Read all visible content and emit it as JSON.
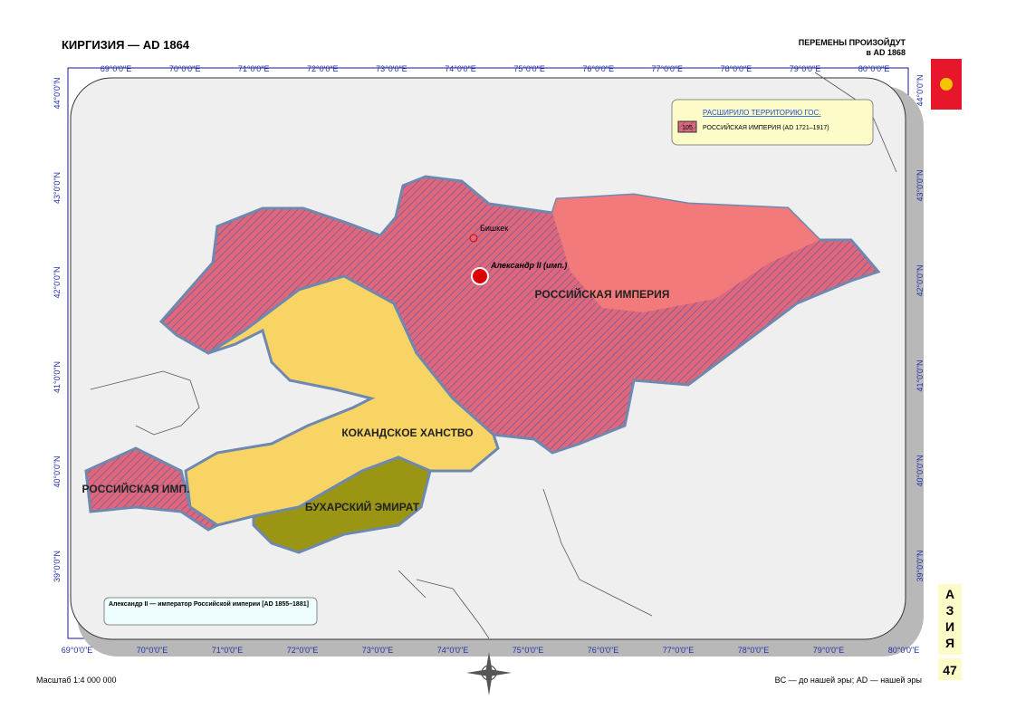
{
  "header": {
    "title": "КИРГИЗИЯ — AD 1864",
    "changes": "ПЕРЕМЕНЫ ПРОИЗОЙДУТ",
    "changes_date": "в AD 1868"
  },
  "grid": {
    "top_lon": [
      "69°0'0\"E",
      "70°0'0\"E",
      "71°0'0\"E",
      "72°0'0\"E",
      "73°0'0\"E",
      "74°0'0\"E",
      "75°0'0\"E",
      "76°0'0\"E",
      "77°0'0\"E",
      "78°0'0\"E",
      "79°0'0\"E",
      "80°0'0\"E"
    ],
    "bottom_lon": [
      "69°0'0\"E",
      "70°0'0\"E",
      "71°0'0\"E",
      "72°0'0\"E",
      "73°0'0\"E",
      "74°0'0\"E",
      "75°0'0\"E",
      "76°0'0\"E",
      "77°0'0\"E",
      "78°0'0\"E",
      "79°0'0\"E",
      "80°0'0\"E"
    ],
    "left_lat": [
      "44°0'0\"N",
      "43°0'0\"N",
      "42°0'0\"N",
      "41°0'0\"N",
      "40°0'0\"N",
      "39°0'0\"N"
    ],
    "right_lat": [
      "44°0'0\"N",
      "43°0'0\"N",
      "42°0'0\"N",
      "41°0'0\"N",
      "40°0'0\"N",
      "39°0'0\"N"
    ]
  },
  "legend": {
    "title": "РАСШИРИЛО ТЕРРИТОРИЮ ГОС.",
    "code": "105",
    "entry": "РОССИЙСКАЯ ИМПЕРИЯ (AD 1721–1917)"
  },
  "map": {
    "city": "Бишкек",
    "ruler": "Александр II (имп.)",
    "regions": [
      "РОССИЙСКАЯ ИМПЕРИЯ",
      "КОКАНДСКОЕ ХАНСТВО",
      "БУХАРСКИЙ ЭМИРАТ",
      "РОССИЙСКАЯ ИМП."
    ]
  },
  "note": "Александр II — император Российской империи [AD 1855–1881]",
  "footer": {
    "scale": "Масштаб 1:4 000 000",
    "era": "BC — до нашей эры; AD — нашей эры"
  },
  "side": {
    "letters": [
      "А",
      "З",
      "И",
      "Я"
    ],
    "page": "47"
  }
}
